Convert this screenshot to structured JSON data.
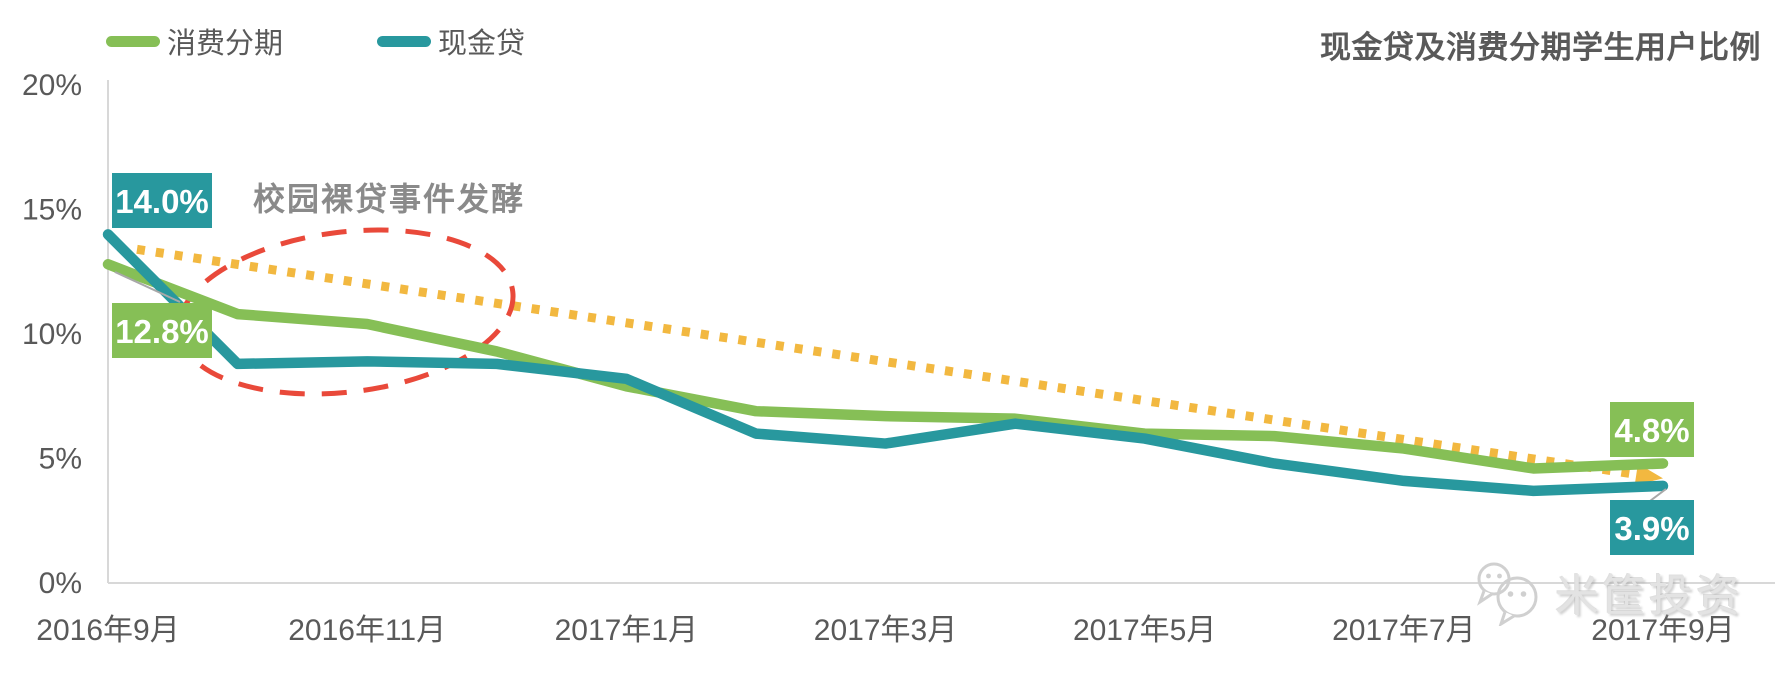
{
  "title": "现金贷及消费分期学生用户比例",
  "legend": [
    {
      "label": "消费分期",
      "color": "#86bf56"
    },
    {
      "label": "现金贷",
      "color": "#28989e"
    }
  ],
  "annotation": "校园裸贷事件发酵",
  "watermark": {
    "text": "米筐投资",
    "icon": "wechat-icon"
  },
  "colors": {
    "green_series": "#86bf56",
    "teal_series": "#28989e",
    "trend_yellow": "#f2b840",
    "ellipse_red": "#e9493a",
    "axis_line": "#d8d8d8",
    "tick_text": "#595959",
    "annotation_text": "#8a8a8a",
    "label_text": "#ffffff",
    "leader_line": "#a8a8a8",
    "watermark_gray": "#d0d0d0"
  },
  "chart_data": {
    "type": "line",
    "x": [
      "2016年9月",
      "2016年10月",
      "2016年11月",
      "2016年12月",
      "2017年1月",
      "2017年2月",
      "2017年3月",
      "2017年4月",
      "2017年5月",
      "2017年6月",
      "2017年7月",
      "2017年8月",
      "2017年9月"
    ],
    "x_tick_labels": [
      "2016年9月",
      "2016年11月",
      "2017年1月",
      "2017年3月",
      "2017年5月",
      "2017年7月",
      "2017年9月"
    ],
    "x_tick_indices": [
      0,
      2,
      4,
      6,
      8,
      10,
      12
    ],
    "series": [
      {
        "name": "消费分期",
        "color": "#86bf56",
        "values": [
          12.8,
          10.8,
          10.4,
          9.3,
          7.9,
          6.9,
          6.7,
          6.6,
          6.0,
          5.9,
          5.4,
          4.6,
          4.8
        ]
      },
      {
        "name": "现金贷",
        "color": "#28989e",
        "values": [
          14.0,
          8.8,
          8.9,
          8.8,
          8.2,
          6.0,
          5.6,
          6.4,
          5.8,
          4.8,
          4.1,
          3.7,
          3.9
        ]
      }
    ],
    "point_labels": [
      {
        "series": "现金贷",
        "x_index": 0,
        "text": "14.0%"
      },
      {
        "series": "消费分期",
        "x_index": 0,
        "text": "12.8%"
      },
      {
        "series": "消费分期",
        "x_index": 12,
        "text": "4.8%"
      },
      {
        "series": "现金贷",
        "x_index": 12,
        "text": "3.9%"
      }
    ],
    "trendline": {
      "style": "dotted",
      "color": "#f2b840",
      "from_pct": 13.4,
      "to_pct": 4.2,
      "arrow": true
    },
    "annotation": {
      "text": "校园裸贷事件发酵",
      "ellipse": true
    },
    "ylim": [
      0,
      20
    ],
    "yticks": [
      {
        "value": 0,
        "label": "0%"
      },
      {
        "value": 5,
        "label": "5%"
      },
      {
        "value": 10,
        "label": "10%"
      },
      {
        "value": 15,
        "label": "15%"
      },
      {
        "value": 20,
        "label": "20%"
      }
    ],
    "grid": false,
    "legend_position": "top-left"
  }
}
